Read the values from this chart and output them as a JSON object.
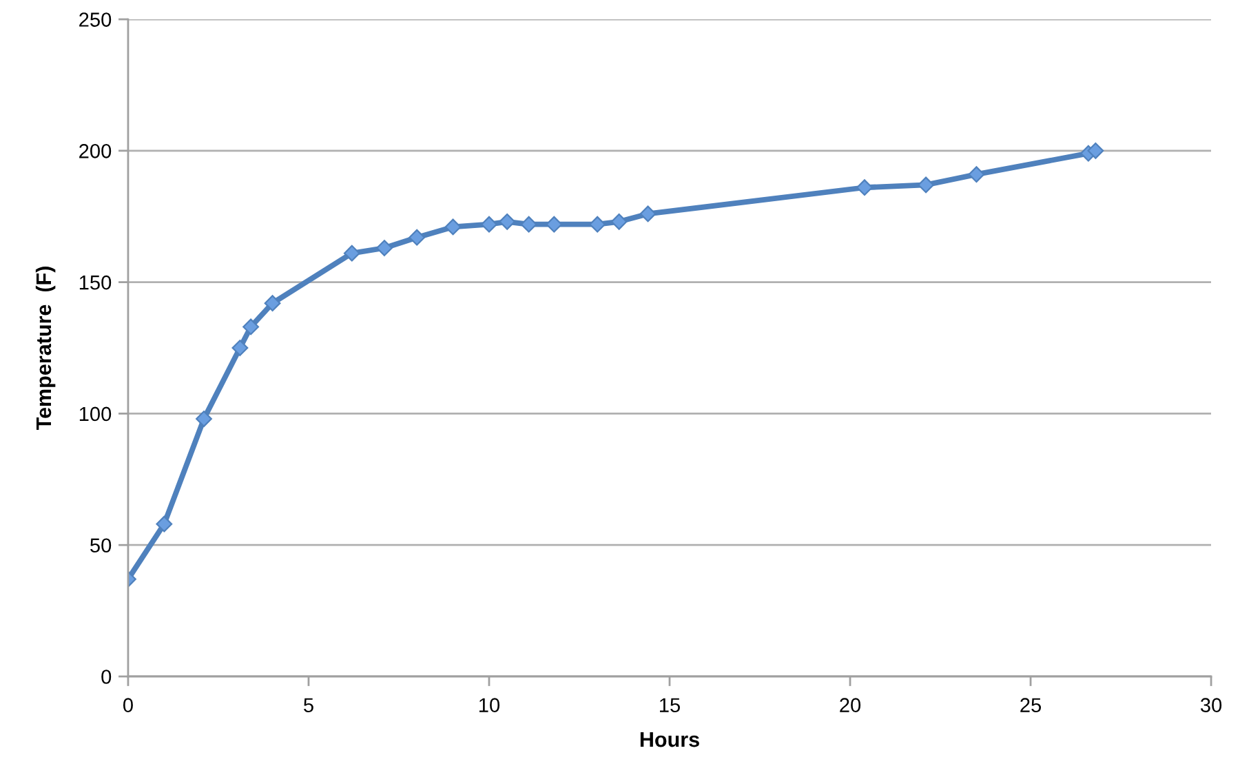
{
  "chart_data": {
    "type": "line",
    "xlabel": "Hours",
    "ylabel": "Temperature  (F)",
    "x": [
      0,
      1.0,
      2.1,
      3.1,
      3.4,
      4.0,
      6.2,
      7.1,
      8.0,
      9.0,
      10.0,
      10.5,
      11.1,
      11.8,
      13.0,
      13.6,
      14.4,
      20.4,
      22.1,
      23.5,
      26.6,
      26.8
    ],
    "series": [
      {
        "color": "#4f81bd",
        "values": [
          37,
          58,
          98,
          125,
          133,
          142,
          161,
          163,
          167,
          171,
          172,
          173,
          172,
          172,
          172,
          173,
          176,
          186,
          187,
          191,
          199,
          200
        ]
      }
    ],
    "xlim": [
      0,
      30
    ],
    "xticks": [
      0,
      5,
      10,
      15,
      20,
      25,
      30
    ],
    "ylim": [
      0,
      250
    ],
    "yticks": [
      0,
      50,
      100,
      150,
      200,
      250
    ],
    "grid": "y",
    "marker": "diamond",
    "line_style": "solid"
  }
}
